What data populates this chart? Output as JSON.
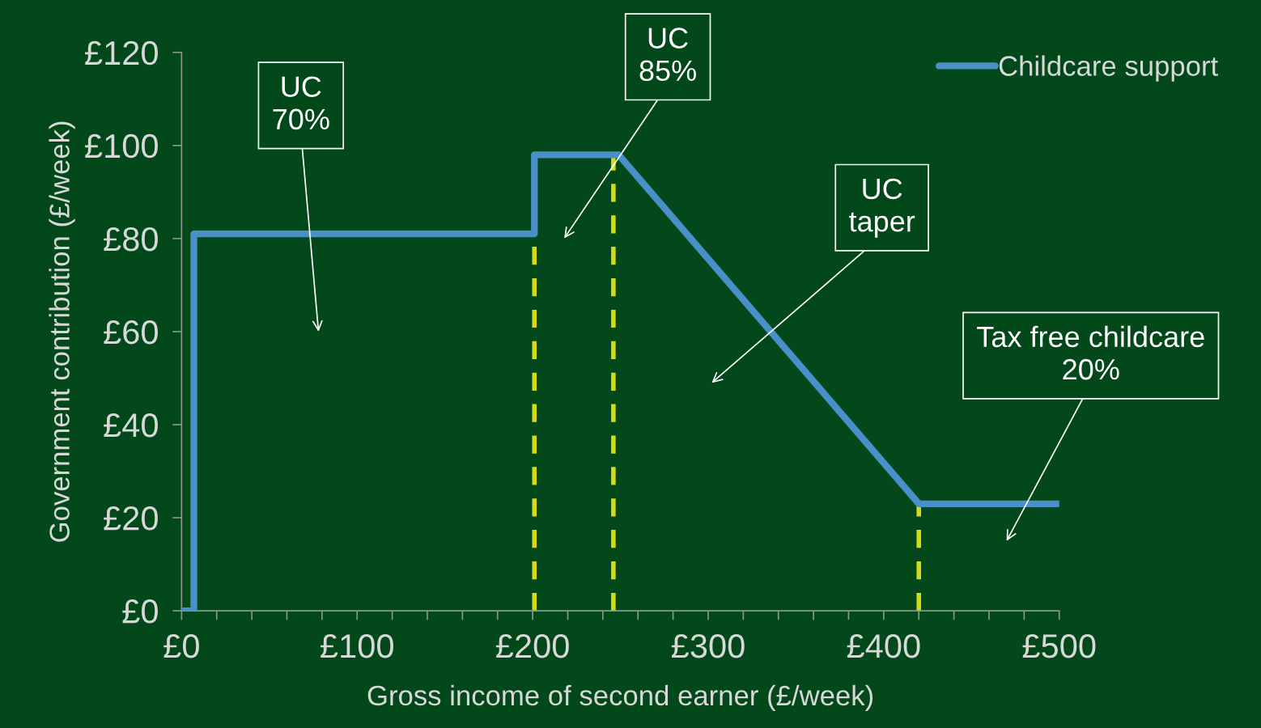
{
  "chart_data": {
    "type": "line",
    "xlabel": "Gross income of second earner (£/week)",
    "ylabel": "Government contribution (£/week)",
    "x": [
      0,
      7,
      7,
      201,
      201,
      249,
      420,
      500
    ],
    "series": [
      {
        "name": "Childcare support",
        "color": "#4a90c8",
        "values": [
          0,
          0,
          81,
          81,
          98,
          98,
          23,
          23
        ]
      }
    ],
    "xlim": [
      0,
      500
    ],
    "xticks": [
      {
        "value": 0,
        "label": "£0"
      },
      {
        "value": 20,
        "label": null
      },
      {
        "value": 40,
        "label": null
      },
      {
        "value": 60,
        "label": null
      },
      {
        "value": 80,
        "label": null
      },
      {
        "value": 100,
        "label": "£100"
      },
      {
        "value": 120,
        "label": null
      },
      {
        "value": 140,
        "label": null
      },
      {
        "value": 160,
        "label": null
      },
      {
        "value": 180,
        "label": null
      },
      {
        "value": 200,
        "label": "£200"
      },
      {
        "value": 220,
        "label": null
      },
      {
        "value": 240,
        "label": null
      },
      {
        "value": 260,
        "label": null
      },
      {
        "value": 280,
        "label": null
      },
      {
        "value": 300,
        "label": "£300"
      },
      {
        "value": 320,
        "label": null
      },
      {
        "value": 340,
        "label": null
      },
      {
        "value": 360,
        "label": null
      },
      {
        "value": 380,
        "label": null
      },
      {
        "value": 400,
        "label": "£400"
      },
      {
        "value": 420,
        "label": null
      },
      {
        "value": 440,
        "label": null
      },
      {
        "value": 460,
        "label": null
      },
      {
        "value": 480,
        "label": null
      },
      {
        "value": 500,
        "label": "£500"
      }
    ],
    "ylim": [
      0,
      120
    ],
    "yticks": [
      {
        "value": 0,
        "label": "£0"
      },
      {
        "value": 20,
        "label": "£20"
      },
      {
        "value": 40,
        "label": "£40"
      },
      {
        "value": 60,
        "label": "£60"
      },
      {
        "value": 80,
        "label": "£80"
      },
      {
        "value": 100,
        "label": "£100"
      },
      {
        "value": 120,
        "label": "£120"
      }
    ],
    "ref_lines": [
      {
        "axis": "x",
        "value": 201,
        "color": "#d4dc1a",
        "line_style": "dashed"
      },
      {
        "axis": "x",
        "value": 246,
        "color": "#d4dc1a",
        "line_style": "dashed"
      },
      {
        "axis": "x",
        "value": 420,
        "color": "#d4dc1a",
        "line_style": "dashed"
      }
    ],
    "annotations": [
      "UC\n70%",
      "UC\n85%",
      "UC\ntaper",
      "Tax free childcare\n20%"
    ],
    "legend": "top right",
    "grid": false,
    "marker": "none",
    "line_style": "solid"
  }
}
